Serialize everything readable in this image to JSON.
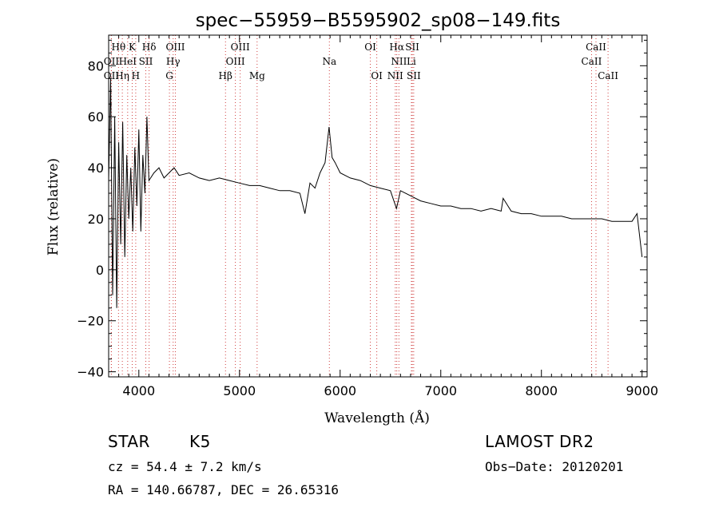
{
  "chart_data": {
    "type": "line",
    "title": "spec−55959−B5595902_sp08−149.fits",
    "xlabel": "Wavelength (Å)",
    "ylabel": "Flux (relative)",
    "xlim": [
      3700,
      9050
    ],
    "ylim": [
      -42,
      92
    ],
    "x_ticks": [
      4000,
      5000,
      6000,
      7000,
      8000,
      9000
    ],
    "y_ticks": [
      -40,
      -20,
      0,
      20,
      40,
      60,
      80
    ],
    "x_minor_step": 100,
    "y_minor_step": 5,
    "grid": false,
    "series": [
      {
        "color": "#000000",
        "x": [
          3700,
          3720,
          3740,
          3760,
          3780,
          3800,
          3820,
          3840,
          3860,
          3880,
          3900,
          3920,
          3940,
          3960,
          3980,
          4000,
          4020,
          4040,
          4060,
          4080,
          4100,
          4150,
          4200,
          4250,
          4300,
          4350,
          4400,
          4500,
          4600,
          4700,
          4800,
          4900,
          5000,
          5100,
          5200,
          5300,
          5400,
          5500,
          5600,
          5650,
          5700,
          5750,
          5800,
          5850,
          5890,
          5920,
          5950,
          6000,
          6100,
          6200,
          6300,
          6400,
          6500,
          6560,
          6600,
          6700,
          6800,
          6900,
          7000,
          7100,
          7200,
          7300,
          7400,
          7500,
          7600,
          7620,
          7700,
          7800,
          7900,
          8000,
          8100,
          8200,
          8300,
          8400,
          8500,
          8600,
          8700,
          8800,
          8900,
          8950,
          9000
        ],
        "y": [
          35,
          75,
          -10,
          60,
          -15,
          50,
          10,
          58,
          5,
          45,
          20,
          40,
          15,
          48,
          25,
          55,
          15,
          45,
          30,
          60,
          35,
          38,
          40,
          36,
          38,
          40,
          37,
          38,
          36,
          35,
          36,
          35,
          34,
          33,
          33,
          32,
          31,
          31,
          30,
          22,
          34,
          32,
          38,
          42,
          56,
          44,
          42,
          38,
          36,
          35,
          33,
          32,
          31,
          24,
          31,
          29,
          27,
          26,
          25,
          25,
          24,
          24,
          23,
          24,
          23,
          28,
          23,
          22,
          22,
          21,
          21,
          21,
          20,
          20,
          20,
          20,
          19,
          19,
          19,
          22,
          5
        ]
      }
    ],
    "lines": [
      {
        "label": "Hθ",
        "wavelength": 3798,
        "row": 1
      },
      {
        "label": "OII",
        "wavelength": 3727,
        "row": 2
      },
      {
        "label": "OII",
        "wavelength": 3727,
        "row": 3
      },
      {
        "label": "Hη",
        "wavelength": 3836,
        "row": 3
      },
      {
        "label": "K",
        "wavelength": 3934,
        "row": 1
      },
      {
        "label": "HeI",
        "wavelength": 3889,
        "row": 2
      },
      {
        "label": "H",
        "wavelength": 3969,
        "row": 3
      },
      {
        "label": "SII",
        "wavelength": 4069,
        "row": 2
      },
      {
        "label": "Hδ",
        "wavelength": 4102,
        "row": 1
      },
      {
        "label": "OIII",
        "wavelength": 4363,
        "row": 1
      },
      {
        "label": "Hγ",
        "wavelength": 4341,
        "row": 2
      },
      {
        "label": "G",
        "wavelength": 4304,
        "row": 3
      },
      {
        "label": "Hβ",
        "wavelength": 4861,
        "row": 3
      },
      {
        "label": "OIII",
        "wavelength": 5007,
        "row": 1
      },
      {
        "label": "OIII",
        "wavelength": 4959,
        "row": 2
      },
      {
        "label": "Mg",
        "wavelength": 5175,
        "row": 3
      },
      {
        "label": "Na",
        "wavelength": 5893,
        "row": 2
      },
      {
        "label": "OI",
        "wavelength": 6300,
        "row": 1
      },
      {
        "label": "OI",
        "wavelength": 6364,
        "row": 3
      },
      {
        "label": "Hα",
        "wavelength": 6563,
        "row": 1
      },
      {
        "label": "NII",
        "wavelength": 6584,
        "row": 2
      },
      {
        "label": "NII",
        "wavelength": 6548,
        "row": 3
      },
      {
        "label": "SII",
        "wavelength": 6717,
        "row": 1
      },
      {
        "label": "Li",
        "wavelength": 6708,
        "row": 2
      },
      {
        "label": "SII",
        "wavelength": 6731,
        "row": 3
      },
      {
        "label": "CaII",
        "wavelength": 8542,
        "row": 1
      },
      {
        "label": "CaII",
        "wavelength": 8498,
        "row": 2
      },
      {
        "label": "CaII",
        "wavelength": 8662,
        "row": 3
      }
    ]
  },
  "info": {
    "class": "STAR",
    "subclass": "K5",
    "survey": "LAMOST DR2",
    "cz": "cz = 54.4 ± 7.2 km/s",
    "obs_date": "Obs−Date: 20120201",
    "coords": "RA = 140.66787, DEC =  26.65316"
  }
}
